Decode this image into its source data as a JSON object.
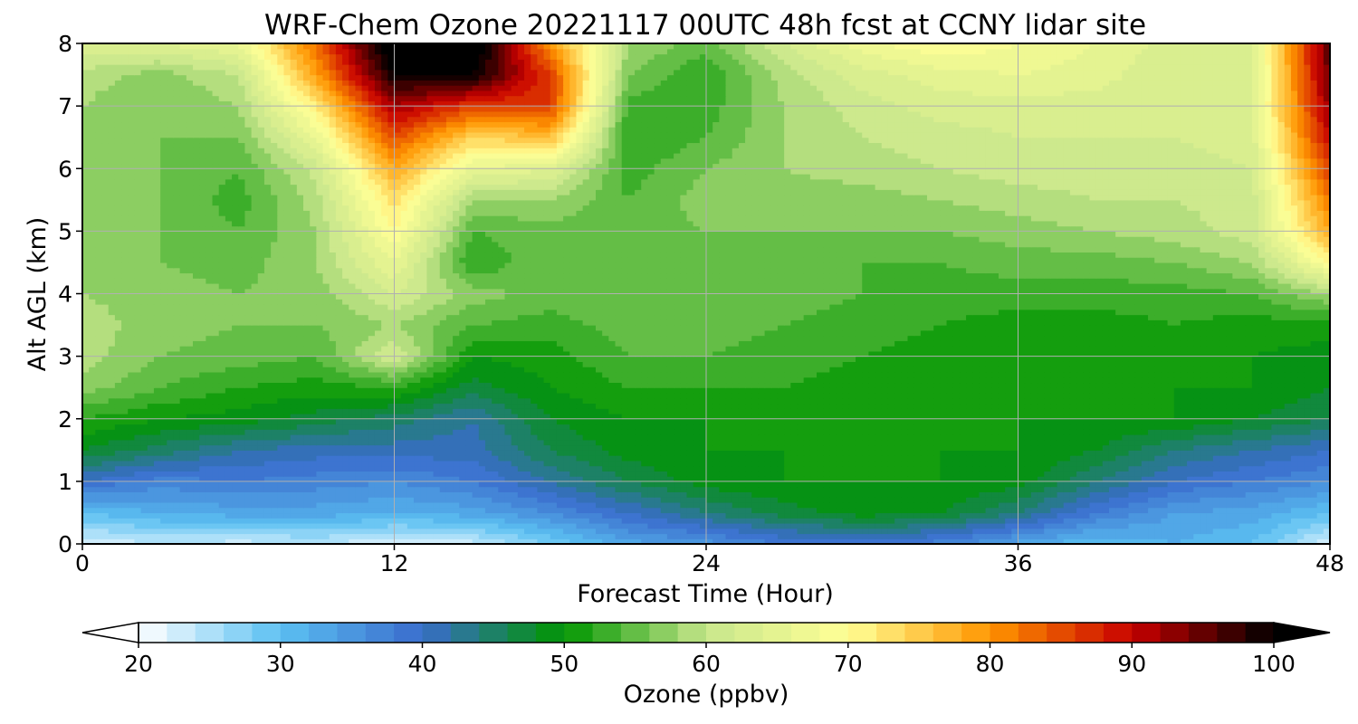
{
  "chart_data": {
    "type": "heatmap",
    "title": "WRF-Chem Ozone  20221117 00UTC 48h fcst at CCNY lidar site",
    "xlabel": "Forecast Time (Hour)",
    "ylabel": "Alt AGL (km)",
    "xlim": [
      0,
      48
    ],
    "ylim": [
      0,
      8
    ],
    "x_ticks": [
      "0",
      "12",
      "24",
      "36",
      "48"
    ],
    "x_tick_values": [
      0,
      12,
      24,
      36,
      48
    ],
    "y_ticks": [
      "0",
      "1",
      "2",
      "3",
      "4",
      "5",
      "6",
      "7",
      "8"
    ],
    "y_tick_values": [
      0,
      1,
      2,
      3,
      4,
      5,
      6,
      7,
      8
    ],
    "grid": true,
    "colorbar": {
      "label": "Ozone  (ppbv)",
      "vmin": 20,
      "vmax": 100,
      "ticks": [
        "20",
        "30",
        "40",
        "50",
        "60",
        "70",
        "80",
        "90",
        "100"
      ],
      "tick_values": [
        20,
        30,
        40,
        50,
        60,
        70,
        80,
        90,
        100
      ],
      "extend": "both",
      "colors": [
        "#ffffff",
        "#5bc0f2",
        "#3a6ccc",
        "#009600",
        "#c8e68c",
        "#ffff96",
        "#ff9600",
        "#c80000",
        "#000000"
      ]
    },
    "z_unit": "ppbv",
    "hours": [
      0,
      3,
      6,
      9,
      12,
      15,
      18,
      21,
      24,
      27,
      30,
      33,
      36,
      39,
      42,
      45,
      48
    ],
    "altitudes_km": [
      0,
      0.5,
      1,
      1.5,
      2,
      2.5,
      3,
      3.5,
      4,
      4.5,
      5,
      5.5,
      6,
      6.5,
      7,
      7.5,
      8
    ],
    "ozone_ppbv": [
      [
        22,
        24,
        23,
        24,
        22,
        23,
        28,
        33,
        35,
        38,
        39,
        37,
        33,
        30,
        32,
        30,
        22
      ],
      [
        30,
        32,
        33,
        33,
        32,
        33,
        36,
        40,
        44,
        47,
        49,
        48,
        44,
        38,
        34,
        33,
        30
      ],
      [
        40,
        37,
        38,
        37,
        36,
        38,
        42,
        46,
        49,
        50,
        50,
        50,
        49,
        44,
        40,
        38,
        36
      ],
      [
        48,
        45,
        42,
        41,
        41,
        41,
        46,
        49,
        50,
        50,
        50,
        50,
        50,
        48,
        44,
        42,
        40
      ],
      [
        52,
        50,
        49,
        47,
        45,
        42,
        48,
        50,
        50,
        51,
        50,
        50,
        50,
        50,
        50,
        48,
        46
      ],
      [
        57,
        54,
        52,
        51,
        52,
        47,
        50,
        52,
        52,
        52,
        51,
        50,
        50,
        50,
        50,
        50,
        48
      ],
      [
        59,
        56,
        55,
        54,
        62,
        50,
        51,
        54,
        54,
        53,
        52,
        51,
        50,
        50,
        50,
        50,
        49
      ],
      [
        59,
        57,
        56,
        56,
        58,
        54,
        53,
        55,
        55,
        54,
        53,
        52,
        51,
        51,
        52,
        51,
        51
      ],
      [
        58,
        57,
        56,
        57,
        62,
        57,
        55,
        56,
        55,
        55,
        54,
        53,
        53,
        53,
        53,
        54,
        58
      ],
      [
        57,
        56,
        55,
        58,
        66,
        52,
        56,
        56,
        55,
        55,
        54,
        54,
        55,
        55,
        56,
        58,
        70
      ],
      [
        57,
        56,
        54,
        58,
        70,
        54,
        55,
        55,
        56,
        56,
        56,
        56,
        57,
        58,
        59,
        61,
        78
      ],
      [
        57,
        56,
        53,
        59,
        73,
        58,
        58,
        54,
        57,
        57,
        57,
        58,
        59,
        60,
        60,
        61,
        82
      ],
      [
        57,
        56,
        54,
        61,
        78,
        66,
        64,
        53,
        56,
        58,
        59,
        60,
        61,
        61,
        61,
        62,
        86
      ],
      [
        58,
        56,
        56,
        66,
        85,
        74,
        76,
        52,
        54,
        58,
        60,
        61,
        62,
        62,
        62,
        63,
        90
      ],
      [
        58,
        56,
        58,
        72,
        92,
        86,
        86,
        53,
        53,
        58,
        61,
        63,
        63,
        63,
        62,
        64,
        93
      ],
      [
        59,
        57,
        60,
        79,
        100,
        100,
        86,
        56,
        52,
        59,
        63,
        65,
        66,
        65,
        62,
        63,
        95
      ],
      [
        64,
        64,
        66,
        83,
        104,
        104,
        80,
        58,
        55,
        62,
        67,
        70,
        68,
        66,
        63,
        64,
        96
      ]
    ]
  }
}
